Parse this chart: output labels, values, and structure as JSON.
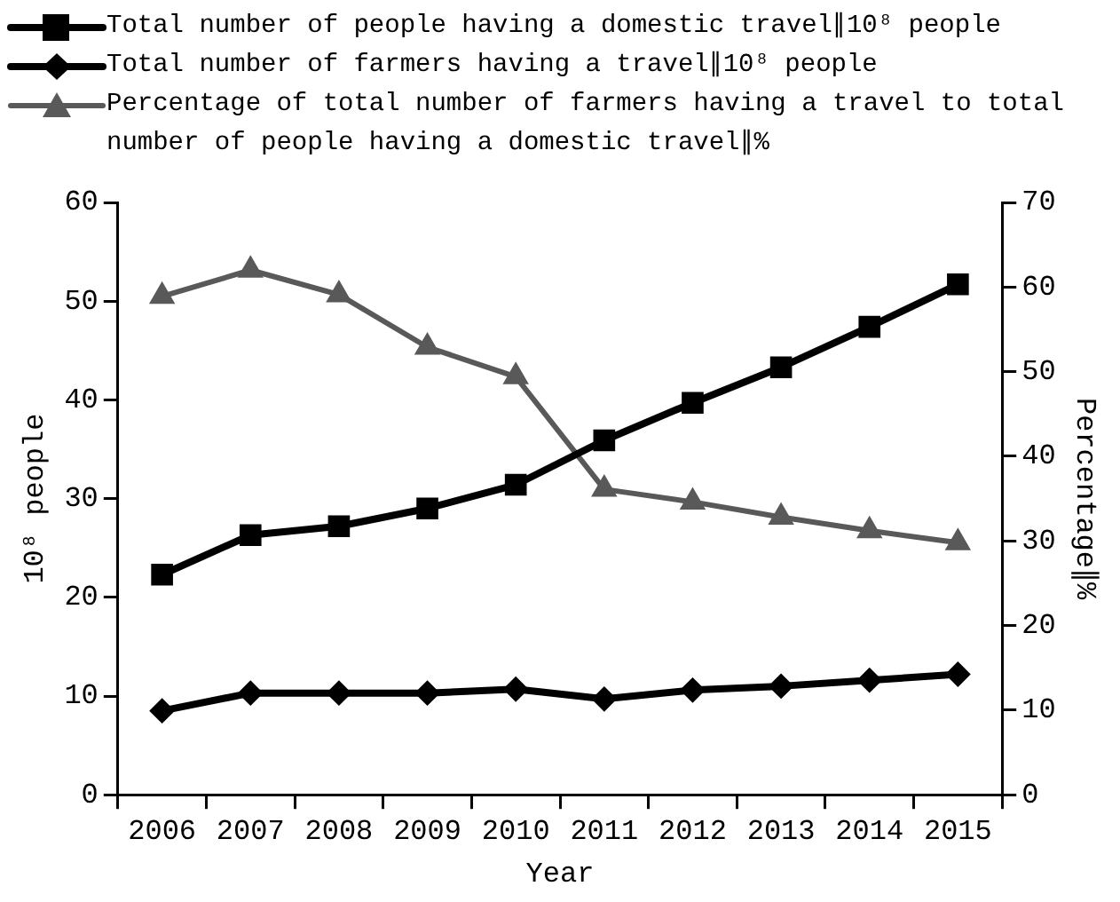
{
  "chart_data": {
    "type": "line",
    "categories": [
      "2006",
      "2007",
      "2008",
      "2009",
      "2010",
      "2011",
      "2012",
      "2013",
      "2014",
      "2015"
    ],
    "series": [
      {
        "name": "Total number of people having a domestic travel∥10⁸ people",
        "color": "#000000",
        "marker": "square",
        "values": [
          22.3,
          26.3,
          27.2,
          29.0,
          31.4,
          35.9,
          39.7,
          43.3,
          47.4,
          51.7
        ]
      },
      {
        "name": "Total number of farmers having a travel∥10⁸ people",
        "color": "#000000",
        "marker": "diamond",
        "values": [
          8.5,
          10.3,
          10.3,
          10.3,
          10.7,
          9.7,
          10.6,
          11.0,
          11.6,
          12.2
        ]
      },
      {
        "name": "Percentage of total number of farmers having a travel to total number of people having a domestic travel∥%",
        "color": "#595959",
        "marker": "triangle",
        "axis": "y2",
        "values": [
          58.9,
          62.0,
          59.1,
          52.9,
          49.4,
          36.1,
          34.6,
          32.8,
          31.2,
          29.8
        ]
      }
    ],
    "xlabel": "Year",
    "ylabel": "10⁸ people",
    "y2label": "Percentage∥%",
    "ylim": [
      0,
      60
    ],
    "yticks": [
      0,
      10,
      20,
      30,
      40,
      50,
      60
    ],
    "y2lim": [
      0,
      70
    ],
    "y2ticks": [
      0,
      10,
      20,
      30,
      40,
      50,
      60,
      70
    ],
    "grid": false,
    "legend": "top left",
    "line_style": "solid"
  }
}
